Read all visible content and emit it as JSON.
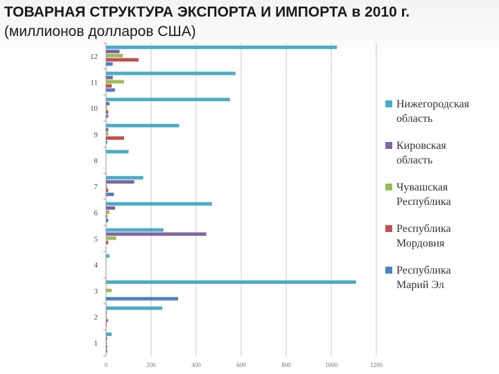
{
  "title": {
    "line1": "ТОВАРНАЯ СТРУКТУРА ЭКСПОРТА И ИМПОРТА в 2010 г.",
    "line2": "(миллионов долларов США)"
  },
  "chart_data": {
    "type": "bar",
    "orientation": "horizontal",
    "categories": [
      "1",
      "2",
      "3",
      "4",
      "5",
      "6",
      "7",
      "8",
      "9",
      "10",
      "11",
      "12"
    ],
    "xlim": [
      0,
      1200
    ],
    "xticks": [
      "0",
      "200",
      "400",
      "600",
      "800",
      "1000",
      "1200"
    ],
    "grid": true,
    "legend_position": "right",
    "series": [
      {
        "name": "Нижегородская область",
        "color": "#4bacc6",
        "values": [
          25,
          250,
          1110,
          15,
          255,
          470,
          165,
          100,
          325,
          550,
          575,
          1025
        ]
      },
      {
        "name": "Кировская область",
        "color": "#8064a2",
        "values": [
          5,
          3,
          0,
          0,
          445,
          40,
          125,
          0,
          10,
          15,
          30,
          60
        ]
      },
      {
        "name": "Чувашская Республика",
        "color": "#9bbb59",
        "values": [
          5,
          3,
          25,
          0,
          45,
          15,
          5,
          0,
          10,
          5,
          80,
          75
        ]
      },
      {
        "name": "Республика Мордовия",
        "color": "#c0504d",
        "values": [
          5,
          8,
          0,
          0,
          10,
          5,
          10,
          0,
          80,
          10,
          25,
          145
        ]
      },
      {
        "name": "Республика Марий Эл",
        "color": "#4f81bd",
        "values": [
          5,
          3,
          320,
          0,
          0,
          10,
          35,
          0,
          5,
          10,
          40,
          30
        ]
      }
    ]
  }
}
